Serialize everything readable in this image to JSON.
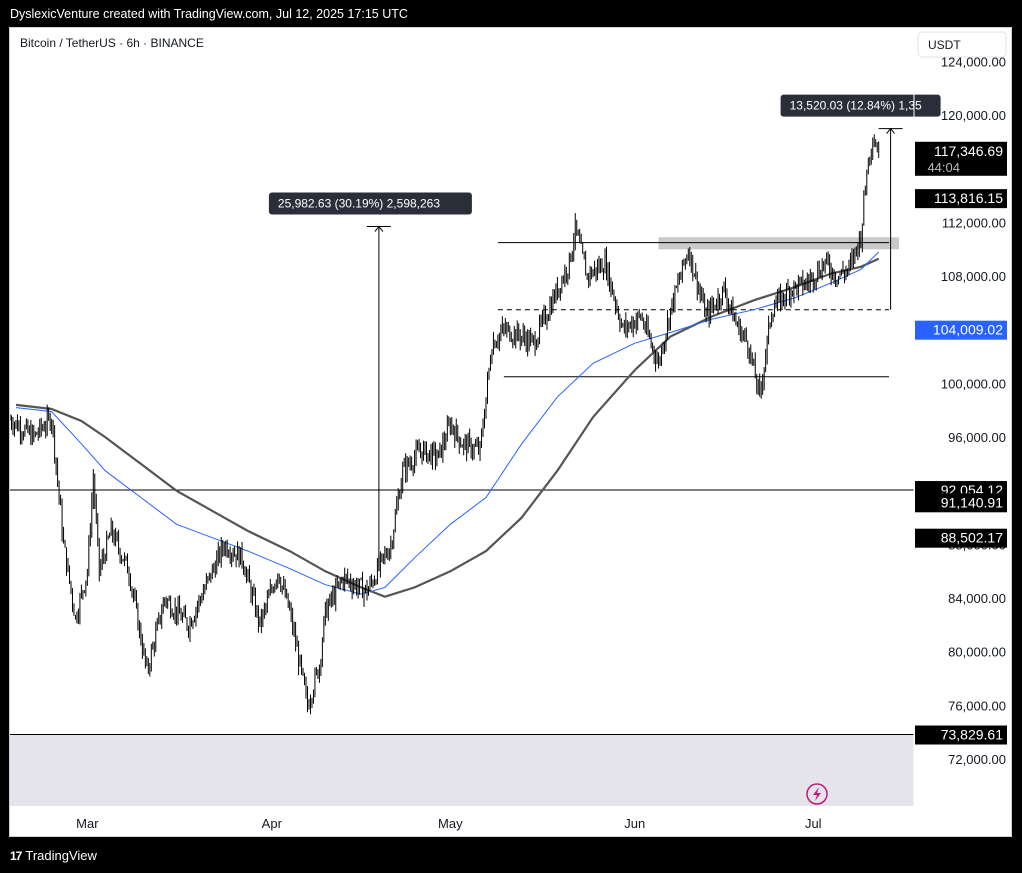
{
  "header": {
    "text": "DyslexicVenture created with TradingView.com, Jul 12, 2025 17:15 UTC"
  },
  "symbol": {
    "title": "Bitcoin / TetherUS · 6h · BINANCE"
  },
  "currency_button": "USDT",
  "footer": {
    "brand": "TradingView",
    "logo": "tv-logo-icon"
  },
  "colors": {
    "candle": "#000000",
    "ma_fast": "#2962ff",
    "ma_slow": "#555555",
    "badge_bg": "#000000",
    "last_badge_bg": "#2962ff",
    "measure_bg": "#2a2e39",
    "range_fill": "#e4e4ea",
    "zone_fill": "#c9c9c9"
  },
  "chart_data": {
    "type": "candlestick",
    "x_ticks": [
      "Mar",
      "Apr",
      "May",
      "Jun",
      "Jul"
    ],
    "ylim": [
      68500,
      126500
    ],
    "y_ticks": [
      72000,
      76000,
      80000,
      84000,
      88000,
      92000,
      96000,
      100000,
      104000,
      108000,
      112000,
      116000,
      120000,
      124000
    ],
    "y_tick_labels": [
      "72,000.00",
      "76,000.00",
      "80,000.00",
      "84,000.00",
      "88,000.00",
      "",
      "96,000.00",
      "100,000.00",
      "",
      "108,000.00",
      "112,000.00",
      "",
      "120,000.00",
      "124,000.00"
    ],
    "price_path_points": [
      [
        "Feb 17",
        97000
      ],
      [
        "Feb 20",
        96000
      ],
      [
        "Feb 23",
        97500
      ],
      [
        "Feb 25",
        88000
      ],
      [
        "Feb 27",
        82500
      ],
      [
        "Mar 1",
        86000
      ],
      [
        "Mar 2",
        93000
      ],
      [
        "Mar 3",
        86000
      ],
      [
        "Mar 5",
        89000
      ],
      [
        "Mar 8",
        86000
      ],
      [
        "Mar 11",
        78500
      ],
      [
        "Mar 14",
        84000
      ],
      [
        "Mar 18",
        82000
      ],
      [
        "Mar 21",
        85000
      ],
      [
        "Mar 24",
        88000
      ],
      [
        "Mar 27",
        87000
      ],
      [
        "Mar 30",
        82000
      ],
      [
        "Apr 2",
        86000
      ],
      [
        "Apr 4",
        83000
      ],
      [
        "Apr 7",
        76000
      ],
      [
        "Apr 9",
        79000
      ],
      [
        "Apr 10",
        83000
      ],
      [
        "Apr 13",
        85500
      ],
      [
        "Apr 17",
        84500
      ],
      [
        "Apr 21",
        88000
      ],
      [
        "Apr 23",
        93500
      ],
      [
        "Apr 26",
        95000
      ],
      [
        "Apr 29",
        94500
      ],
      [
        "May 1",
        97000
      ],
      [
        "May 3",
        95500
      ],
      [
        "May 6",
        95000
      ],
      [
        "May 8",
        103000
      ],
      [
        "May 10",
        104000
      ],
      [
        "May 13",
        103500
      ],
      [
        "May 15",
        103000
      ],
      [
        "May 18",
        106000
      ],
      [
        "May 21",
        109000
      ],
      [
        "May 22",
        111500
      ],
      [
        "May 24",
        108000
      ],
      [
        "May 27",
        109000
      ],
      [
        "May 30",
        104000
      ],
      [
        "Jun 2",
        105000
      ],
      [
        "Jun 5",
        101500
      ],
      [
        "Jun 7",
        105500
      ],
      [
        "Jun 10",
        110000
      ],
      [
        "Jun 13",
        105000
      ],
      [
        "Jun 16",
        107000
      ],
      [
        "Jun 18",
        104500
      ],
      [
        "Jun 20",
        103000
      ],
      [
        "Jun 22",
        99000
      ],
      [
        "Jun 24",
        105500
      ],
      [
        "Jun 27",
        107000
      ],
      [
        "Jun 30",
        107500
      ],
      [
        "Jul 3",
        109000
      ],
      [
        "Jul 5",
        108000
      ],
      [
        "Jul 7",
        108500
      ],
      [
        "Jul 9",
        111000
      ],
      [
        "Jul 10",
        116000
      ],
      [
        "Jul 11",
        118500
      ],
      [
        "Jul 12",
        117346.69
      ]
    ],
    "ma_fast_path_points": [
      [
        "Feb 17",
        98200
      ],
      [
        "Feb 23",
        97900
      ],
      [
        "Feb 28",
        95500
      ],
      [
        "Mar 4",
        93500
      ],
      [
        "Mar 10",
        91500
      ],
      [
        "Mar 16",
        89500
      ],
      [
        "Mar 22",
        88500
      ],
      [
        "Mar 28",
        87500
      ],
      [
        "Apr 4",
        86200
      ],
      [
        "Apr 10",
        85000
      ],
      [
        "Apr 16",
        84300
      ],
      [
        "Apr 20",
        84800
      ],
      [
        "Apr 25",
        87000
      ],
      [
        "May 1",
        89500
      ],
      [
        "May 7",
        91500
      ],
      [
        "May 13",
        95500
      ],
      [
        "May 19",
        99000
      ],
      [
        "May 25",
        101500
      ],
      [
        "Jun 1",
        103000
      ],
      [
        "Jun 7",
        103800
      ],
      [
        "Jun 14",
        104800
      ],
      [
        "Jun 21",
        105500
      ],
      [
        "Jun 28",
        106400
      ],
      [
        "Jul 4",
        107500
      ],
      [
        "Jul 9",
        108500
      ],
      [
        "Jul 12",
        109800
      ]
    ],
    "ma_slow_path_points": [
      [
        "Feb 17",
        98400
      ],
      [
        "Feb 23",
        98100
      ],
      [
        "Feb 28",
        97200
      ],
      [
        "Mar 4",
        96000
      ],
      [
        "Mar 10",
        94000
      ],
      [
        "Mar 16",
        92000
      ],
      [
        "Mar 22",
        90500
      ],
      [
        "Mar 28",
        89000
      ],
      [
        "Apr 4",
        87500
      ],
      [
        "Apr 10",
        86000
      ],
      [
        "Apr 16",
        84800
      ],
      [
        "Apr 20",
        84100
      ],
      [
        "Apr 25",
        84800
      ],
      [
        "May 1",
        86000
      ],
      [
        "May 7",
        87500
      ],
      [
        "May 13",
        90000
      ],
      [
        "May 19",
        93500
      ],
      [
        "May 25",
        97500
      ],
      [
        "Jun 1",
        101000
      ],
      [
        "Jun 7",
        103500
      ],
      [
        "Jun 14",
        105000
      ],
      [
        "Jun 21",
        106200
      ],
      [
        "Jun 28",
        107200
      ],
      [
        "Jul 4",
        108200
      ],
      [
        "Jul 9",
        108700
      ],
      [
        "Jul 12",
        109300
      ]
    ],
    "horizontal_levels": [
      {
        "name": "resistance-top",
        "y": 110500,
        "x_from": "May 9",
        "x_to": "Jul 17",
        "style": "solid"
      },
      {
        "name": "range-bottom",
        "y": 100500,
        "x_from": "May 10",
        "x_to": "Jul 17",
        "style": "solid"
      },
      {
        "name": "mid-dashed",
        "y": 105500,
        "x_from": "May 9",
        "x_to": "Jul 17",
        "style": "dashed"
      },
      {
        "name": "level-92054",
        "y": 92054.12,
        "x_from": "Feb 16",
        "x_to": "Jul 20",
        "style": "solid"
      },
      {
        "name": "level-73829",
        "y": 73829.61,
        "x_from": "Feb 16",
        "x_to": "Jul 20",
        "style": "solid"
      }
    ],
    "shaded_zones": [
      {
        "name": "supply-zone",
        "y_from": 110000,
        "y_to": 110900,
        "x_from": "Jun 5",
        "x_to": "Jul 17"
      },
      {
        "name": "lower-range",
        "y_from": 68500,
        "y_to": 73829.61,
        "x_from": "Feb 16",
        "x_to": "Jul 20"
      }
    ],
    "measurements": [
      {
        "label": "25,982.63 (30.19%) 2,598,263",
        "y_from": 86000,
        "y_to": 111700,
        "x": "Apr 19"
      },
      {
        "label": "13,520.03 (12.84%) 1,35",
        "y_from": 105500,
        "y_to": 119000,
        "x": "Jul 14"
      }
    ],
    "price_badges": [
      {
        "label": "117,346.69",
        "sub": "44:04",
        "kind": "current"
      },
      {
        "label": "113,816.15",
        "y": 113816.15,
        "kind": "level"
      },
      {
        "label": "104,009.02",
        "y": 104009.02,
        "kind": "ma"
      },
      {
        "label": "92,054.12",
        "y": 92054.12,
        "kind": "level"
      },
      {
        "label": "91,140.91",
        "y": 91140.91,
        "kind": "level"
      },
      {
        "label": "88,502.17",
        "y": 88502.17,
        "kind": "level"
      },
      {
        "label": "73,829.61",
        "y": 73829.61,
        "kind": "level"
      }
    ]
  }
}
